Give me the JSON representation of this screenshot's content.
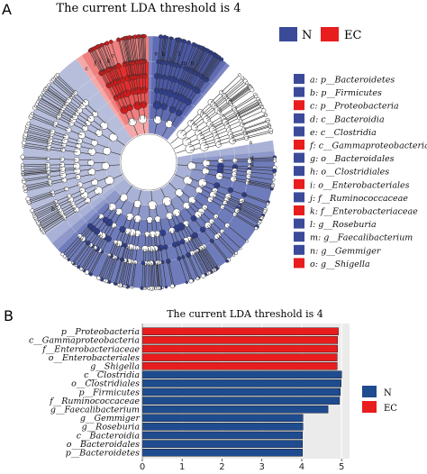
{
  "panel_a": {
    "letter": "A",
    "title": "The current LDA threshold is 4",
    "legend_groups": [
      {
        "name": "N",
        "color": "#3b4b9a"
      },
      {
        "name": "EC",
        "color": "#e81d1d"
      }
    ],
    "taxa_legend": [
      {
        "text": "a: p__Bacteroidetes",
        "group": "N"
      },
      {
        "text": "b: p__Firmicutes",
        "group": "N"
      },
      {
        "text": "c: p__Proteobacteria",
        "group": "EC"
      },
      {
        "text": "d: c__Bacteroidia",
        "group": "N"
      },
      {
        "text": "e: c__Clostridia",
        "group": "N"
      },
      {
        "text": "f: c__Gammaproteobacteria",
        "group": "EC"
      },
      {
        "text": "g: o__Bacteroidales",
        "group": "N"
      },
      {
        "text": "h: o__Clostridiales",
        "group": "N"
      },
      {
        "text": "i: o__Enterobacteriales",
        "group": "EC"
      },
      {
        "text": "j: f__Ruminococcaceae",
        "group": "N"
      },
      {
        "text": "k: f__Enterobacteriaceae",
        "group": "EC"
      },
      {
        "text": "l: g__Roseburia",
        "group": "N"
      },
      {
        "text": "m: g__Faecalibacterium",
        "group": "N"
      },
      {
        "text": "n: g__Gemmiger",
        "group": "N"
      },
      {
        "text": "o: g__Shigella",
        "group": "EC"
      }
    ],
    "clade_labels": [
      "a",
      "b",
      "c",
      "d",
      "e",
      "f",
      "g",
      "h",
      "i",
      "j",
      "k",
      "l",
      "m",
      "n",
      "o"
    ]
  },
  "panel_b": {
    "letter": "B"
  },
  "chart_data": {
    "type": "bar",
    "orientation": "horizontal",
    "title": "The current LDA threshold is 4",
    "categories": [
      "p__Proteobacteria",
      "c__Gammaproteobacteria",
      "f__Enterobacteriaceae",
      "o__Enterobacteriales",
      "g__Shigella",
      "c__Clostridia",
      "o__Clostridiales",
      "p__Firmicutes",
      "f__Ruminococcaceae",
      "g__Faecalibacterium",
      "g__Gemmiger",
      "g__Roseburia",
      "c__Bacteroidia",
      "o__Bacteroidales",
      "p__Bacteroidetes"
    ],
    "groups": [
      "EC",
      "EC",
      "EC",
      "EC",
      "EC",
      "N",
      "N",
      "N",
      "N",
      "N",
      "N",
      "N",
      "N",
      "N",
      "N"
    ],
    "values": [
      4.92,
      4.9,
      4.9,
      4.89,
      4.89,
      5.0,
      4.99,
      4.97,
      4.95,
      4.66,
      4.03,
      4.03,
      4.02,
      4.02,
      4.02
    ],
    "series": [
      {
        "name": "N",
        "color": "#1f4b8f"
      },
      {
        "name": "EC",
        "color": "#e81d1d"
      }
    ],
    "xlim": [
      0,
      5.2
    ],
    "xticks": [
      0,
      1,
      2,
      3,
      4,
      5
    ],
    "xlabel": "",
    "ylabel": "",
    "grid": true,
    "legend_position": "right"
  }
}
